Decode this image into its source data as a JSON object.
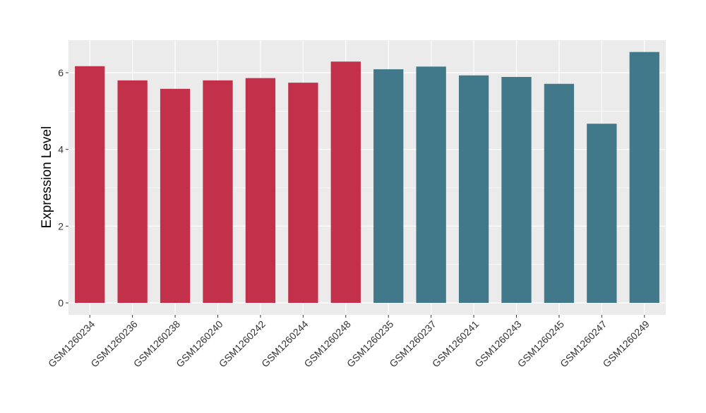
{
  "chart_data": {
    "type": "bar",
    "title": "",
    "xlabel": "",
    "ylabel": "Expression Level",
    "ylim": [
      0,
      6.85
    ],
    "yticks": [
      0,
      2,
      4,
      6
    ],
    "ytick_labels": [
      "0",
      "2",
      "4",
      "6"
    ],
    "grid": true,
    "legend": "none",
    "colors": {
      "group_a": "#C3304A",
      "group_b": "#41798A",
      "panel": "#EBEBEB",
      "gridline": "#FFFFFF"
    },
    "categories": [
      "GSM1260234",
      "GSM1260236",
      "GSM1260238",
      "GSM1260240",
      "GSM1260242",
      "GSM1260244",
      "GSM1260248",
      "GSM1260235",
      "GSM1260237",
      "GSM1260241",
      "GSM1260243",
      "GSM1260245",
      "GSM1260247",
      "GSM1260249"
    ],
    "values": [
      6.17,
      5.8,
      5.58,
      5.8,
      5.86,
      5.74,
      6.29,
      6.09,
      6.16,
      5.93,
      5.89,
      5.71,
      4.67,
      6.54
    ],
    "bar_groups": [
      "group_a",
      "group_a",
      "group_a",
      "group_a",
      "group_a",
      "group_a",
      "group_a",
      "group_b",
      "group_b",
      "group_b",
      "group_b",
      "group_b",
      "group_b",
      "group_b"
    ]
  }
}
